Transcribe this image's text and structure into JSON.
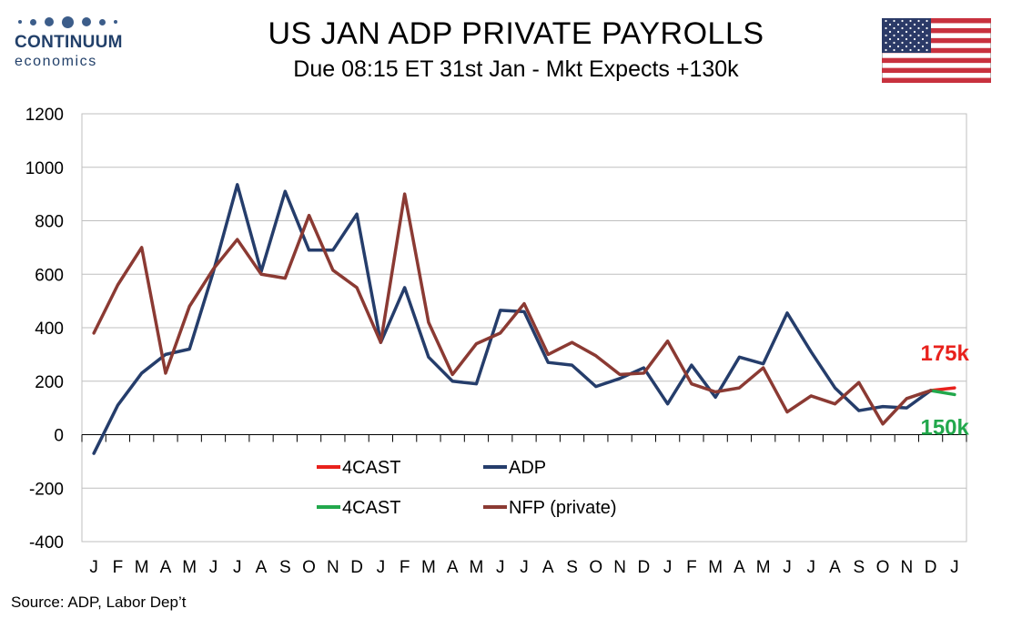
{
  "logo": {
    "brand": "CONTINUUM",
    "sub": "economics"
  },
  "header": {
    "title": "US JAN ADP PRIVATE PAYROLLS",
    "subtitle": "Due 08:15 ET 31st Jan - Mkt Expects +130k"
  },
  "footer": {
    "source": "Source: ADP, Labor Dep’t"
  },
  "colors": {
    "adp": "#253d6b",
    "nfp": "#8b3a33",
    "forecast_high": "#e8211c",
    "forecast_low": "#22a84c",
    "grid": "#bfbfbf"
  },
  "chart_data": {
    "type": "line",
    "title": "US JAN ADP PRIVATE PAYROLLS",
    "xlabel": "",
    "ylabel": "",
    "ylim": [
      -400,
      1200
    ],
    "yticks": [
      -400,
      -200,
      0,
      200,
      400,
      600,
      800,
      1000,
      1200
    ],
    "grid": true,
    "legend_position": "lower-center",
    "categories": [
      "J",
      "F",
      "M",
      "A",
      "M",
      "J",
      "J",
      "A",
      "S",
      "O",
      "N",
      "D",
      "J",
      "F",
      "M",
      "A",
      "M",
      "J",
      "J",
      "A",
      "S",
      "O",
      "N",
      "D",
      "J",
      "F",
      "M",
      "A",
      "M",
      "J",
      "J",
      "A",
      "S",
      "O",
      "N",
      "D",
      "J"
    ],
    "series": [
      {
        "name": "ADP",
        "color_key": "adp",
        "values": [
          -70,
          110,
          230,
          300,
          320,
          610,
          935,
          610,
          910,
          690,
          690,
          825,
          345,
          550,
          290,
          200,
          190,
          465,
          460,
          270,
          260,
          180,
          210,
          250,
          115,
          260,
          140,
          290,
          265,
          455,
          310,
          175,
          90,
          105,
          100,
          165,
          null
        ]
      },
      {
        "name": "NFP (private)",
        "color_key": "nfp",
        "values": [
          380,
          560,
          700,
          230,
          480,
          620,
          730,
          600,
          585,
          820,
          615,
          550,
          345,
          900,
          420,
          225,
          340,
          380,
          490,
          300,
          345,
          295,
          225,
          230,
          350,
          190,
          160,
          175,
          250,
          85,
          145,
          115,
          195,
          40,
          135,
          165,
          null
        ]
      },
      {
        "name": "4CAST",
        "color_key": "forecast_high",
        "values": [
          null,
          null,
          null,
          null,
          null,
          null,
          null,
          null,
          null,
          null,
          null,
          null,
          null,
          null,
          null,
          null,
          null,
          null,
          null,
          null,
          null,
          null,
          null,
          null,
          null,
          null,
          null,
          null,
          null,
          null,
          null,
          null,
          null,
          null,
          null,
          165,
          175
        ]
      },
      {
        "name": "4CAST",
        "color_key": "forecast_low",
        "values": [
          null,
          null,
          null,
          null,
          null,
          null,
          null,
          null,
          null,
          null,
          null,
          null,
          null,
          null,
          null,
          null,
          null,
          null,
          null,
          null,
          null,
          null,
          null,
          null,
          null,
          null,
          null,
          null,
          null,
          null,
          null,
          null,
          null,
          null,
          null,
          165,
          150
        ]
      }
    ],
    "annotations": [
      {
        "text": "175k",
        "color_key": "forecast_high"
      },
      {
        "text": "150k",
        "color_key": "forecast_low"
      }
    ],
    "legend": [
      {
        "label": "4CAST",
        "color_key": "forecast_high"
      },
      {
        "label": "ADP",
        "color_key": "adp"
      },
      {
        "label": "4CAST",
        "color_key": "forecast_low"
      },
      {
        "label": "NFP (private)",
        "color_key": "nfp"
      }
    ]
  }
}
